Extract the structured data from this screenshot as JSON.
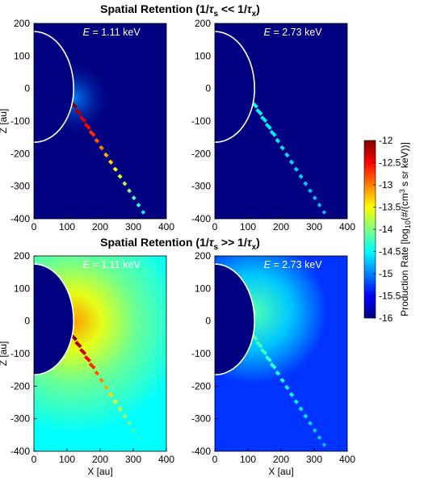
{
  "titles": {
    "top": {
      "prefix": "Spatial Retention (1/",
      "tau1": "τ",
      "sub1": "s",
      "mid": " << 1/",
      "tau2": "τ",
      "sub2": "x",
      "suffix": ")"
    },
    "bottom": {
      "prefix": "Spatial Retention (1/",
      "tau1": "τ",
      "sub1": "s",
      "mid": " >> 1/",
      "tau2": "τ",
      "sub2": "x",
      "suffix": ")"
    }
  },
  "colorbar": {
    "ticks": [
      "-12",
      "-12.5",
      "-13",
      "-13.5",
      "-14",
      "-14.5",
      "-15",
      "-15.5",
      "-16"
    ],
    "label": {
      "pre": "Production Rate [log",
      "sub": "10",
      "mid": "(#/(cm",
      "sup": "3",
      "post": " s sr keV))]"
    }
  },
  "chart_data": [
    {
      "type": "heatmap",
      "panel": "top-left",
      "energy_label": "E",
      "energy_value": "= 1.11 keV",
      "xlabel": "",
      "ylabel": "Z [au]",
      "xlim": [
        0,
        400
      ],
      "ylim": [
        -400,
        200
      ],
      "xticks": [
        "0",
        "100",
        "200",
        "300",
        "400"
      ],
      "yticks": [
        "200",
        "100",
        "0",
        "-100",
        "-200",
        "-300",
        "-400"
      ],
      "colorscale": "jet",
      "clim": [
        -16,
        -12
      ],
      "background": -16,
      "tail_peak": -12,
      "glow": "weak"
    },
    {
      "type": "heatmap",
      "panel": "top-right",
      "energy_label": "E",
      "energy_value": "= 2.73 keV",
      "xlabel": "",
      "ylabel": "",
      "xlim": [
        0,
        400
      ],
      "ylim": [
        -400,
        200
      ],
      "xticks": [
        "0",
        "100",
        "200",
        "300",
        "400"
      ],
      "yticks": [
        "200",
        "100",
        "0",
        "-100",
        "-200",
        "-300",
        "-400"
      ],
      "colorscale": "jet",
      "clim": [
        -16,
        -12
      ],
      "background": -16,
      "tail_peak": -14.5,
      "glow": "faint"
    },
    {
      "type": "heatmap",
      "panel": "bottom-left",
      "energy_label": "E",
      "energy_value": "= 1.11 keV",
      "xlabel": "X [au]",
      "ylabel": "Z [au]",
      "xlim": [
        0,
        400
      ],
      "ylim": [
        -400,
        200
      ],
      "xticks": [
        "0",
        "100",
        "200",
        "300",
        "400"
      ],
      "yticks": [
        "200",
        "100",
        "0",
        "-100",
        "-200",
        "-300",
        "-400"
      ],
      "colorscale": "jet",
      "clim": [
        -16,
        -12
      ],
      "background": -14.5,
      "tail_peak": -12,
      "glow": "strong"
    },
    {
      "type": "heatmap",
      "panel": "bottom-right",
      "energy_label": "E",
      "energy_value": "= 2.73 keV",
      "xlabel": "X [au]",
      "ylabel": "",
      "xlim": [
        0,
        400
      ],
      "ylim": [
        -400,
        200
      ],
      "xticks": [
        "0",
        "100",
        "200",
        "300",
        "400"
      ],
      "yticks": [
        "200",
        "100",
        "0",
        "-100",
        "-200",
        "-300",
        "-400"
      ],
      "colorscale": "jet",
      "clim": [
        -16,
        -12
      ],
      "background": -15.3,
      "tail_peak": -14.2,
      "glow": "medium"
    }
  ],
  "colors": {
    "jet_low": "#00007f",
    "jet_high": "#7f0000",
    "boundary": "#ffffff"
  }
}
